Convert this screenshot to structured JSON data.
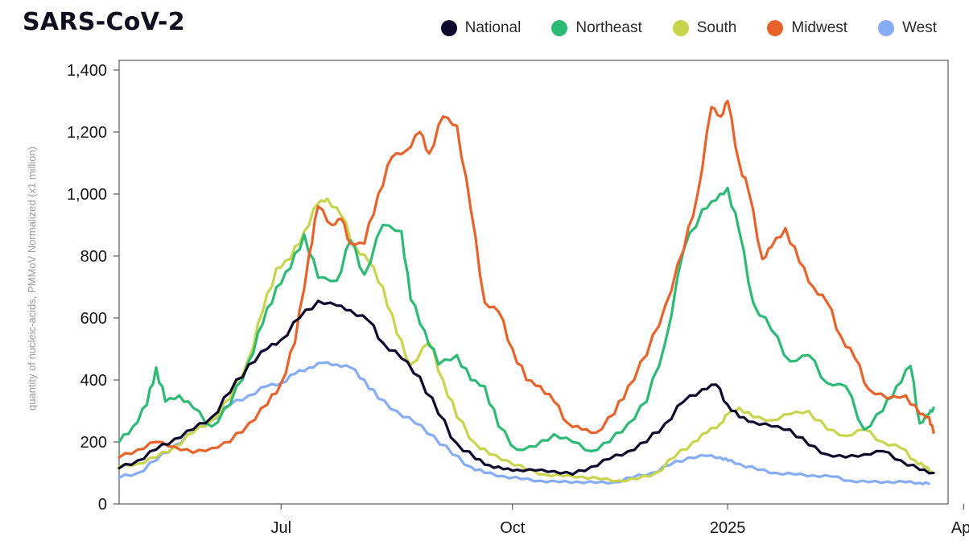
{
  "chart_data": {
    "type": "line",
    "title": "SARS-CoV-2",
    "xlabel": "",
    "ylabel": "quantity of nucleic-acids, PMMoV Normalized (x1 million)",
    "ylim": [
      0,
      1400
    ],
    "yticks": [
      0,
      200,
      400,
      600,
      800,
      1000,
      1200,
      1400
    ],
    "ytick_labels": [
      "0",
      "200",
      "400",
      "600",
      "800",
      "1,000",
      "1,200",
      "1,400"
    ],
    "x_domain": [
      0,
      352
    ],
    "xticks": [
      {
        "value": 70,
        "label": "Jul"
      },
      {
        "value": 170,
        "label": "Oct"
      },
      {
        "value": 263,
        "label": "2025"
      },
      {
        "value": 365,
        "label": "Apr"
      }
    ],
    "grid": false,
    "legend_position": "top-right",
    "series": [
      {
        "name": "National",
        "color": "#0d0a2e",
        "x": [
          0,
          8,
          16,
          24,
          32,
          40,
          48,
          56,
          64,
          70,
          78,
          86,
          94,
          100,
          108,
          114,
          122,
          130,
          138,
          146,
          154,
          160,
          166,
          172,
          180,
          188,
          196,
          204,
          212,
          220,
          228,
          236,
          244,
          252,
          258,
          263,
          268,
          274,
          282,
          290,
          298,
          306,
          314,
          322,
          330,
          338,
          346,
          352
        ],
        "values": [
          115,
          140,
          175,
          210,
          240,
          280,
          360,
          450,
          500,
          530,
          600,
          655,
          640,
          625,
          590,
          520,
          470,
          410,
          290,
          195,
          145,
          125,
          112,
          110,
          108,
          106,
          95,
          120,
          145,
          170,
          200,
          260,
          330,
          370,
          385,
          320,
          280,
          265,
          250,
          240,
          190,
          160,
          150,
          160,
          170,
          140,
          110,
          100
        ]
      },
      {
        "name": "Northeast",
        "color": "#2dba74",
        "x": [
          0,
          6,
          12,
          16,
          20,
          26,
          32,
          40,
          48,
          56,
          62,
          68,
          74,
          80,
          86,
          94,
          100,
          106,
          114,
          122,
          126,
          132,
          138,
          146,
          152,
          158,
          164,
          172,
          180,
          188,
          196,
          204,
          212,
          220,
          228,
          236,
          244,
          252,
          258,
          263,
          268,
          274,
          282,
          290,
          298,
          306,
          314,
          322,
          330,
          336,
          342,
          346,
          350,
          352
        ],
        "values": [
          200,
          250,
          320,
          440,
          330,
          350,
          310,
          250,
          320,
          460,
          580,
          700,
          760,
          870,
          730,
          720,
          850,
          740,
          900,
          880,
          660,
          560,
          450,
          480,
          400,
          380,
          250,
          175,
          185,
          225,
          200,
          170,
          200,
          260,
          330,
          520,
          820,
          950,
          980,
          1020,
          880,
          650,
          560,
          460,
          480,
          390,
          380,
          240,
          300,
          380,
          445,
          260,
          290,
          310
        ]
      },
      {
        "name": "South",
        "color": "#c8d44c",
        "x": [
          0,
          8,
          16,
          24,
          32,
          40,
          48,
          56,
          62,
          68,
          74,
          80,
          86,
          90,
          96,
          102,
          108,
          114,
          120,
          126,
          134,
          140,
          146,
          154,
          160,
          168,
          176,
          184,
          192,
          200,
          208,
          216,
          224,
          232,
          240,
          248,
          254,
          260,
          263,
          268,
          274,
          282,
          290,
          298,
          306,
          314,
          322,
          330,
          338,
          344,
          348,
          352
        ],
        "values": [
          120,
          130,
          150,
          185,
          230,
          270,
          340,
          470,
          620,
          760,
          790,
          880,
          970,
          985,
          930,
          830,
          780,
          700,
          550,
          450,
          520,
          400,
          280,
          195,
          160,
          140,
          110,
          95,
          90,
          88,
          80,
          75,
          80,
          100,
          150,
          200,
          230,
          260,
          290,
          310,
          280,
          270,
          290,
          300,
          240,
          220,
          240,
          200,
          180,
          140,
          120,
          100
        ]
      },
      {
        "name": "Midwest",
        "color": "#e8632b",
        "x": [
          0,
          8,
          16,
          24,
          32,
          40,
          48,
          56,
          64,
          70,
          76,
          82,
          86,
          92,
          96,
          100,
          106,
          112,
          118,
          124,
          130,
          134,
          140,
          146,
          152,
          158,
          164,
          170,
          176,
          182,
          188,
          194,
          200,
          206,
          214,
          220,
          228,
          236,
          244,
          250,
          256,
          260,
          263,
          268,
          272,
          278,
          282,
          288,
          294,
          300,
          306,
          312,
          318,
          324,
          332,
          340,
          346,
          350,
          352
        ],
        "values": [
          150,
          175,
          200,
          185,
          165,
          180,
          200,
          260,
          320,
          390,
          520,
          800,
          960,
          900,
          920,
          840,
          840,
          1000,
          1120,
          1140,
          1200,
          1130,
          1250,
          1220,
          950,
          650,
          620,
          500,
          400,
          380,
          330,
          260,
          240,
          230,
          290,
          380,
          480,
          640,
          820,
          1000,
          1280,
          1250,
          1300,
          1100,
          1010,
          790,
          830,
          890,
          780,
          700,
          650,
          540,
          470,
          370,
          340,
          350,
          290,
          280,
          230
        ]
      },
      {
        "name": "West",
        "color": "#86acf5",
        "x": [
          0,
          8,
          16,
          24,
          32,
          40,
          48,
          56,
          64,
          70,
          76,
          82,
          88,
          94,
          100,
          106,
          112,
          120,
          128,
          136,
          144,
          152,
          158,
          166,
          174,
          182,
          190,
          198,
          206,
          214,
          222,
          230,
          238,
          246,
          254,
          260,
          263,
          268,
          276,
          284,
          292,
          300,
          308,
          316,
          324,
          332,
          340,
          346,
          350
        ],
        "values": [
          85,
          100,
          140,
          190,
          230,
          270,
          320,
          350,
          380,
          390,
          420,
          440,
          455,
          450,
          440,
          400,
          340,
          300,
          260,
          220,
          160,
          120,
          100,
          90,
          80,
          75,
          70,
          72,
          68,
          70,
          85,
          100,
          125,
          150,
          155,
          150,
          140,
          130,
          110,
          100,
          95,
          92,
          88,
          75,
          70,
          72,
          70,
          68,
          65
        ]
      }
    ]
  },
  "legend": {
    "items": [
      {
        "label": "National",
        "color": "#0d0a2e"
      },
      {
        "label": "Northeast",
        "color": "#2dba74"
      },
      {
        "label": "South",
        "color": "#c8d44c"
      },
      {
        "label": "Midwest",
        "color": "#e8632b"
      },
      {
        "label": "West",
        "color": "#86acf5"
      }
    ]
  }
}
